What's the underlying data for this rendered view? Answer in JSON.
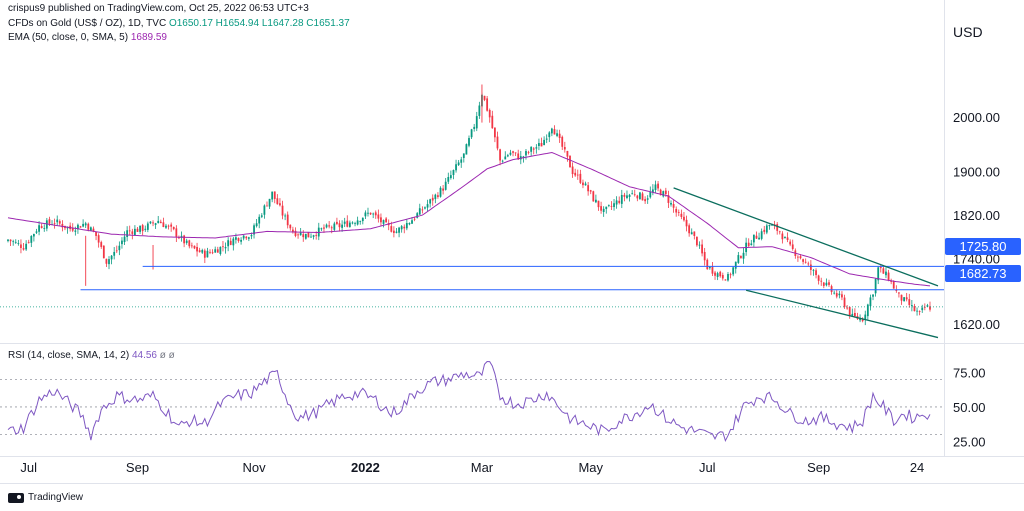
{
  "header": {
    "published": "crispus9 published on TradingView.com, Oct 25, 2022 06:53 UTC+3",
    "symbol": "CFDs on Gold (US$ / OZ), 1D, TVC",
    "ohlc": "O1650.17 H1654.94 L1647.28 C1651.37",
    "ema_label": "EMA (50, close, 0, SMA, 5)",
    "ema_value": "1689.59",
    "rsi_label": "RSI (14, close, SMA, 14, 2)",
    "rsi_value": "44.56",
    "rsi_symbols": "ø  ø"
  },
  "footer": {
    "brand": "TradingView"
  },
  "colors": {
    "up": "#089981",
    "down": "#f23645",
    "ema": "#9c27b0",
    "rsi": "#7e57c2",
    "level": "#2962ff",
    "channel": "#0b6e5e"
  },
  "chart_data": [
    {
      "type": "candlestick",
      "title": "CFDs on Gold (US$ / OZ), 1D, TVC",
      "currency": "USD",
      "y_ticks": [
        "2000.00",
        "1900.00",
        "1820.00",
        "1740.00",
        "1620.00"
      ],
      "ylim": [
        1585,
        2105
      ],
      "x_ticks": [
        "Jul",
        "Sep",
        "Nov",
        "2022",
        "Mar",
        "May",
        "Jul",
        "Sep",
        "24"
      ],
      "price_waypoints": [
        [
          0,
          1775
        ],
        [
          6,
          1762
        ],
        [
          12,
          1800
        ],
        [
          18,
          1808
        ],
        [
          24,
          1795
        ],
        [
          30,
          1805
        ],
        [
          34,
          1782
        ],
        [
          38,
          1735
        ],
        [
          42,
          1755
        ],
        [
          46,
          1790
        ],
        [
          52,
          1795
        ],
        [
          58,
          1810
        ],
        [
          64,
          1790
        ],
        [
          70,
          1762
        ],
        [
          76,
          1748
        ],
        [
          82,
          1760
        ],
        [
          88,
          1778
        ],
        [
          94,
          1786
        ],
        [
          98,
          1825
        ],
        [
          102,
          1860
        ],
        [
          106,
          1822
        ],
        [
          110,
          1790
        ],
        [
          116,
          1782
        ],
        [
          122,
          1795
        ],
        [
          128,
          1800
        ],
        [
          134,
          1810
        ],
        [
          140,
          1825
        ],
        [
          146,
          1800
        ],
        [
          150,
          1790
        ],
        [
          156,
          1812
        ],
        [
          162,
          1840
        ],
        [
          168,
          1870
        ],
        [
          172,
          1900
        ],
        [
          176,
          1930
        ],
        [
          180,
          1985
        ],
        [
          183,
          2045
        ],
        [
          186,
          2000
        ],
        [
          190,
          1920
        ],
        [
          194,
          1935
        ],
        [
          198,
          1925
        ],
        [
          202,
          1940
        ],
        [
          206,
          1950
        ],
        [
          210,
          1985
        ],
        [
          214,
          1945
        ],
        [
          218,
          1900
        ],
        [
          222,
          1880
        ],
        [
          226,
          1850
        ],
        [
          230,
          1825
        ],
        [
          234,
          1840
        ],
        [
          238,
          1855
        ],
        [
          242,
          1860
        ],
        [
          246,
          1850
        ],
        [
          250,
          1870
        ],
        [
          254,
          1855
        ],
        [
          258,
          1825
        ],
        [
          262,
          1800
        ],
        [
          266,
          1770
        ],
        [
          270,
          1725
        ],
        [
          274,
          1712
        ],
        [
          278,
          1705
        ],
        [
          282,
          1740
        ],
        [
          286,
          1770
        ],
        [
          290,
          1785
        ],
        [
          294,
          1802
        ],
        [
          298,
          1790
        ],
        [
          302,
          1760
        ],
        [
          306,
          1742
        ],
        [
          310,
          1720
        ],
        [
          314,
          1700
        ],
        [
          318,
          1680
        ],
        [
          322,
          1665
        ],
        [
          326,
          1632
        ],
        [
          330,
          1630
        ],
        [
          334,
          1680
        ],
        [
          336,
          1722
        ],
        [
          340,
          1705
        ],
        [
          344,
          1670
        ],
        [
          348,
          1655
        ],
        [
          350,
          1645
        ],
        [
          352,
          1638
        ],
        [
          354,
          1650
        ],
        [
          356,
          1651
        ]
      ],
      "ema_waypoints": [
        [
          0,
          1815
        ],
        [
          20,
          1800
        ],
        [
          40,
          1785
        ],
        [
          60,
          1780
        ],
        [
          80,
          1778
        ],
        [
          100,
          1790
        ],
        [
          120,
          1788
        ],
        [
          140,
          1795
        ],
        [
          160,
          1820
        ],
        [
          175,
          1870
        ],
        [
          185,
          1905
        ],
        [
          195,
          1922
        ],
        [
          210,
          1935
        ],
        [
          225,
          1905
        ],
        [
          240,
          1872
        ],
        [
          255,
          1855
        ],
        [
          270,
          1805
        ],
        [
          282,
          1760
        ],
        [
          295,
          1762
        ],
        [
          310,
          1742
        ],
        [
          325,
          1712
        ],
        [
          340,
          1700
        ],
        [
          350,
          1693
        ],
        [
          356,
          1690
        ]
      ],
      "horizontal_levels": [
        {
          "label": "1725.80",
          "value": 1725.8,
          "from_index": 52
        },
        {
          "label": "1682.73",
          "value": 1682.73,
          "from_index": 28
        }
      ],
      "current_price": 1651.37,
      "channel": {
        "upper": [
          [
            257,
            1870
          ],
          [
            356,
            1690
          ]
        ],
        "lower": [
          [
            285,
            1682
          ],
          [
            356,
            1595
          ]
        ]
      }
    },
    {
      "type": "line",
      "title": "RSI (14, close, SMA, 14, 2)",
      "y_ticks": [
        "75.00",
        "50.00",
        "25.00"
      ],
      "ylim": [
        15,
        90
      ],
      "bands": [
        70,
        50,
        30
      ],
      "rsi_waypoints": [
        [
          0,
          32
        ],
        [
          6,
          35
        ],
        [
          12,
          55
        ],
        [
          18,
          62
        ],
        [
          24,
          52
        ],
        [
          28,
          45
        ],
        [
          32,
          30
        ],
        [
          36,
          48
        ],
        [
          42,
          58
        ],
        [
          50,
          55
        ],
        [
          56,
          58
        ],
        [
          62,
          45
        ],
        [
          66,
          35
        ],
        [
          70,
          40
        ],
        [
          76,
          38
        ],
        [
          82,
          52
        ],
        [
          88,
          58
        ],
        [
          94,
          60
        ],
        [
          100,
          70
        ],
        [
          104,
          74
        ],
        [
          108,
          55
        ],
        [
          112,
          42
        ],
        [
          118,
          45
        ],
        [
          124,
          52
        ],
        [
          130,
          58
        ],
        [
          136,
          60
        ],
        [
          142,
          55
        ],
        [
          148,
          45
        ],
        [
          152,
          50
        ],
        [
          158,
          62
        ],
        [
          164,
          68
        ],
        [
          170,
          70
        ],
        [
          176,
          74
        ],
        [
          182,
          72
        ],
        [
          186,
          82
        ],
        [
          190,
          58
        ],
        [
          196,
          52
        ],
        [
          202,
          55
        ],
        [
          208,
          60
        ],
        [
          214,
          48
        ],
        [
          218,
          40
        ],
        [
          222,
          38
        ],
        [
          226,
          35
        ],
        [
          230,
          32
        ],
        [
          236,
          40
        ],
        [
          242,
          45
        ],
        [
          248,
          52
        ],
        [
          254,
          42
        ],
        [
          260,
          35
        ],
        [
          266,
          32
        ],
        [
          272,
          28
        ],
        [
          278,
          30
        ],
        [
          284,
          50
        ],
        [
          290,
          58
        ],
        [
          296,
          56
        ],
        [
          302,
          45
        ],
        [
          308,
          40
        ],
        [
          314,
          42
        ],
        [
          320,
          38
        ],
        [
          326,
          35
        ],
        [
          330,
          40
        ],
        [
          334,
          58
        ],
        [
          338,
          50
        ],
        [
          342,
          40
        ],
        [
          346,
          45
        ],
        [
          350,
          42
        ],
        [
          354,
          46
        ],
        [
          356,
          44.56
        ]
      ]
    }
  ]
}
